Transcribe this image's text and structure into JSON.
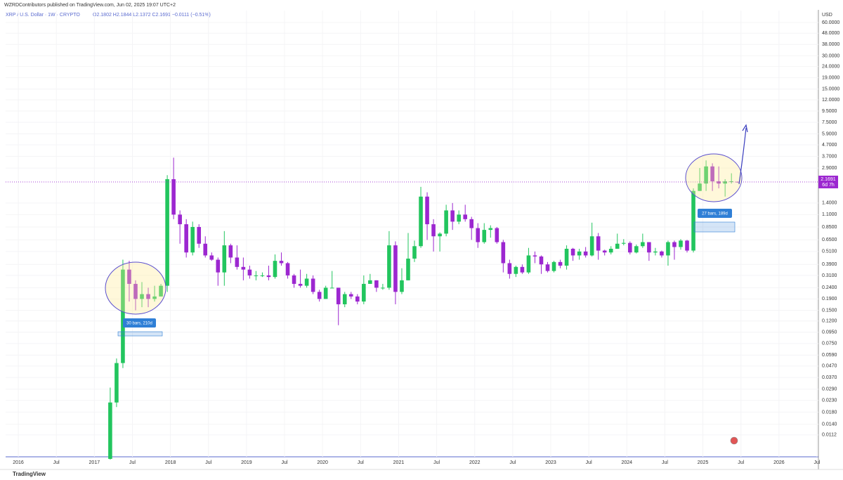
{
  "header": {
    "byline": "WZRDContributors published on TradingView.com, Jun 02, 2025 19:07 UTC+2",
    "brand": "TradingView"
  },
  "chart_data": {
    "type": "candlestick",
    "title": "XRP / U.S. Dollar · 1W · CRYPTO",
    "ohlc_label": "O2.1802 H2.1844 L2.1372 C2.1691 −0.0111 (−0.51%)",
    "currency": "USD",
    "last_price_label": "2.1691",
    "countdown": "6d 7h",
    "log_scale": true,
    "grid": true,
    "up_color": "#22c55e",
    "down_color": "#9c27d0",
    "annotations": [
      "30 bars, 210d",
      "27 bars, 189d"
    ],
    "x": [
      "2017-03",
      "2017-04",
      "2017-05",
      "2017-06",
      "2017-07",
      "2017-08",
      "2017-09",
      "2017-10",
      "2017-11",
      "2017-12",
      "2018-01",
      "2018-02",
      "2018-03",
      "2018-04",
      "2018-05",
      "2018-06",
      "2018-07",
      "2018-08",
      "2018-09",
      "2018-10",
      "2018-11",
      "2018-12",
      "2019-01",
      "2019-02",
      "2019-03",
      "2019-04",
      "2019-05",
      "2019-06",
      "2019-07",
      "2019-08",
      "2019-09",
      "2019-10",
      "2019-11",
      "2019-12",
      "2020-01",
      "2020-02",
      "2020-03",
      "2020-04",
      "2020-05",
      "2020-06",
      "2020-07",
      "2020-08",
      "2020-09",
      "2020-10",
      "2020-11",
      "2020-12",
      "2021-01",
      "2021-02",
      "2021-03",
      "2021-04",
      "2021-05",
      "2021-06",
      "2021-07",
      "2021-08",
      "2021-09",
      "2021-10",
      "2021-11",
      "2021-12",
      "2022-01",
      "2022-02",
      "2022-03",
      "2022-04",
      "2022-05",
      "2022-06",
      "2022-07",
      "2022-08",
      "2022-09",
      "2022-10",
      "2022-11",
      "2022-12",
      "2023-01",
      "2023-02",
      "2023-03",
      "2023-04",
      "2023-05",
      "2023-06",
      "2023-07",
      "2023-08",
      "2023-09",
      "2023-10",
      "2023-11",
      "2023-12",
      "2024-01",
      "2024-02",
      "2024-03",
      "2024-04",
      "2024-05",
      "2024-06",
      "2024-07",
      "2024-08",
      "2024-09",
      "2024-10",
      "2024-11",
      "2024-12",
      "2025-01",
      "2025-02",
      "2025-03",
      "2025-04",
      "2025-05",
      "2025-06"
    ],
    "open": [
      0.0068,
      0.022,
      0.05,
      0.35,
      0.26,
      0.19,
      0.21,
      0.19,
      0.2,
      0.25,
      2.3,
      1.1,
      0.9,
      0.5,
      0.85,
      0.6,
      0.47,
      0.43,
      0.33,
      0.58,
      0.45,
      0.37,
      0.35,
      0.31,
      0.31,
      0.31,
      0.3,
      0.42,
      0.4,
      0.31,
      0.26,
      0.25,
      0.29,
      0.22,
      0.19,
      0.24,
      0.24,
      0.17,
      0.21,
      0.2,
      0.18,
      0.26,
      0.28,
      0.24,
      0.24,
      0.58,
      0.22,
      0.28,
      0.44,
      0.57,
      1.6,
      0.9,
      0.7,
      0.74,
      1.2,
      0.95,
      1.1,
      1.0,
      0.83,
      0.62,
      0.8,
      0.83,
      0.62,
      0.4,
      0.32,
      0.37,
      0.33,
      0.47,
      0.46,
      0.39,
      0.34,
      0.41,
      0.38,
      0.54,
      0.47,
      0.51,
      0.47,
      0.7,
      0.52,
      0.5,
      0.54,
      0.6,
      0.61,
      0.5,
      0.57,
      0.62,
      0.5,
      0.51,
      0.47,
      0.62,
      0.56,
      0.64,
      0.52,
      1.8,
      2.1,
      3.0,
      2.2,
      2.1,
      2.2,
      2.1802
    ],
    "high": [
      0.03,
      0.055,
      0.43,
      0.42,
      0.28,
      0.27,
      0.24,
      0.25,
      0.26,
      2.5,
      3.6,
      1.2,
      1.0,
      0.95,
      0.9,
      0.7,
      0.5,
      0.45,
      0.78,
      0.6,
      0.58,
      0.45,
      0.38,
      0.34,
      0.33,
      0.38,
      0.48,
      0.5,
      0.41,
      0.32,
      0.35,
      0.32,
      0.31,
      0.23,
      0.25,
      0.34,
      0.24,
      0.22,
      0.22,
      0.21,
      0.31,
      0.32,
      0.28,
      0.26,
      0.78,
      0.63,
      0.36,
      0.75,
      0.64,
      1.96,
      1.75,
      1.0,
      0.76,
      1.35,
      1.4,
      1.2,
      1.35,
      1.05,
      0.92,
      0.92,
      0.88,
      0.85,
      0.65,
      0.43,
      0.38,
      0.39,
      0.55,
      0.51,
      0.47,
      0.41,
      0.42,
      0.43,
      0.58,
      0.55,
      0.54,
      0.56,
      0.93,
      0.75,
      0.53,
      0.57,
      0.74,
      0.66,
      0.63,
      0.59,
      0.74,
      0.62,
      0.55,
      0.52,
      0.64,
      0.64,
      0.66,
      0.65,
      1.9,
      2.9,
      3.4,
      3.2,
      3.0,
      2.3,
      2.6,
      2.1844
    ],
    "low": [
      0.0067,
      0.02,
      0.045,
      0.18,
      0.15,
      0.16,
      0.16,
      0.18,
      0.2,
      0.22,
      1.0,
      0.6,
      0.45,
      0.47,
      0.55,
      0.45,
      0.42,
      0.25,
      0.25,
      0.4,
      0.35,
      0.28,
      0.29,
      0.28,
      0.3,
      0.28,
      0.29,
      0.38,
      0.29,
      0.24,
      0.24,
      0.24,
      0.21,
      0.18,
      0.19,
      0.24,
      0.11,
      0.16,
      0.19,
      0.17,
      0.17,
      0.26,
      0.22,
      0.23,
      0.23,
      0.17,
      0.21,
      0.28,
      0.41,
      0.55,
      0.65,
      0.51,
      0.51,
      0.7,
      0.8,
      0.9,
      0.95,
      0.65,
      0.55,
      0.6,
      0.68,
      0.6,
      0.33,
      0.29,
      0.3,
      0.32,
      0.32,
      0.4,
      0.32,
      0.33,
      0.33,
      0.36,
      0.35,
      0.42,
      0.43,
      0.45,
      0.46,
      0.43,
      0.47,
      0.48,
      0.54,
      0.58,
      0.48,
      0.49,
      0.55,
      0.42,
      0.47,
      0.45,
      0.38,
      0.43,
      0.53,
      0.5,
      0.5,
      1.8,
      1.8,
      1.8,
      1.9,
      1.6,
      2.1,
      2.1372
    ],
    "close": [
      0.022,
      0.05,
      0.35,
      0.26,
      0.19,
      0.21,
      0.19,
      0.2,
      0.25,
      2.3,
      1.1,
      0.9,
      0.5,
      0.85,
      0.6,
      0.47,
      0.43,
      0.33,
      0.58,
      0.45,
      0.37,
      0.35,
      0.31,
      0.31,
      0.31,
      0.3,
      0.42,
      0.4,
      0.31,
      0.26,
      0.25,
      0.29,
      0.22,
      0.19,
      0.24,
      0.24,
      0.17,
      0.21,
      0.2,
      0.18,
      0.26,
      0.28,
      0.24,
      0.24,
      0.58,
      0.22,
      0.28,
      0.44,
      0.57,
      1.6,
      0.9,
      0.7,
      0.74,
      1.2,
      0.95,
      1.1,
      1.0,
      0.83,
      0.62,
      0.8,
      0.83,
      0.62,
      0.4,
      0.32,
      0.37,
      0.33,
      0.47,
      0.46,
      0.39,
      0.34,
      0.41,
      0.38,
      0.54,
      0.47,
      0.51,
      0.47,
      0.7,
      0.52,
      0.5,
      0.54,
      0.6,
      0.61,
      0.5,
      0.57,
      0.62,
      0.5,
      0.51,
      0.47,
      0.62,
      0.56,
      0.64,
      0.52,
      1.8,
      2.1,
      3.0,
      2.2,
      2.1,
      2.2,
      2.2,
      2.1691
    ],
    "ylim": [
      0.0071,
      77
    ],
    "yticks": [
      {
        "value": 60,
        "label": "60.0000"
      },
      {
        "value": 48,
        "label": "48.0000"
      },
      {
        "value": 38,
        "label": "38.0000"
      },
      {
        "value": 30,
        "label": "30.0000"
      },
      {
        "value": 24,
        "label": "24.0000"
      },
      {
        "value": 19,
        "label": "19.0000"
      },
      {
        "value": 15,
        "label": "15.0000"
      },
      {
        "value": 12,
        "label": "12.0000"
      },
      {
        "value": 9.5,
        "label": "9.5000"
      },
      {
        "value": 7.5,
        "label": "7.5000"
      },
      {
        "value": 5.9,
        "label": "5.9000"
      },
      {
        "value": 4.7,
        "label": "4.7000"
      },
      {
        "value": 3.7,
        "label": "3.7000"
      },
      {
        "value": 2.9,
        "label": "2.9000"
      },
      {
        "value": 1.4,
        "label": "1.4000"
      },
      {
        "value": 1.1,
        "label": "1.1000"
      },
      {
        "value": 0.85,
        "label": "0.8500"
      },
      {
        "value": 0.65,
        "label": "0.6500"
      },
      {
        "value": 0.51,
        "label": "0.5100"
      },
      {
        "value": 0.39,
        "label": "0.3900"
      },
      {
        "value": 0.31,
        "label": "0.3100"
      },
      {
        "value": 0.24,
        "label": "0.2400"
      },
      {
        "value": 0.19,
        "label": "0.1900"
      },
      {
        "value": 0.15,
        "label": "0.1500"
      },
      {
        "value": 0.12,
        "label": "0.1200"
      },
      {
        "value": 0.095,
        "label": "0.0950"
      },
      {
        "value": 0.075,
        "label": "0.0750"
      },
      {
        "value": 0.059,
        "label": "0.0590"
      },
      {
        "value": 0.047,
        "label": "0.0470"
      },
      {
        "value": 0.037,
        "label": "0.0370"
      },
      {
        "value": 0.029,
        "label": "0.0290"
      },
      {
        "value": 0.023,
        "label": "0.0230"
      },
      {
        "value": 0.018,
        "label": "0.0180"
      },
      {
        "value": 0.014,
        "label": "0.0140"
      },
      {
        "value": 0.0112,
        "label": "0.0112"
      }
    ],
    "xlim": [
      "2015-11",
      "2026-07"
    ],
    "xticks": [
      {
        "value": "2016-01",
        "label": "2016"
      },
      {
        "value": "2016-07",
        "label": "Jul"
      },
      {
        "value": "2017-01",
        "label": "2017"
      },
      {
        "value": "2017-07",
        "label": "Jul"
      },
      {
        "value": "2018-01",
        "label": "2018"
      },
      {
        "value": "2018-07",
        "label": "Jul"
      },
      {
        "value": "2019-01",
        "label": "2019"
      },
      {
        "value": "2019-07",
        "label": "Jul"
      },
      {
        "value": "2020-01",
        "label": "2020"
      },
      {
        "value": "2020-07",
        "label": "Jul"
      },
      {
        "value": "2021-01",
        "label": "2021"
      },
      {
        "value": "2021-07",
        "label": "Jul"
      },
      {
        "value": "2022-01",
        "label": "2022"
      },
      {
        "value": "2022-07",
        "label": "Jul"
      },
      {
        "value": "2023-01",
        "label": "2023"
      },
      {
        "value": "2023-07",
        "label": "Jul"
      },
      {
        "value": "2024-01",
        "label": "2024"
      },
      {
        "value": "2024-07",
        "label": "Jul"
      },
      {
        "value": "2025-01",
        "label": "2025"
      },
      {
        "value": "2025-07",
        "label": "Jul"
      },
      {
        "value": "2026-01",
        "label": "2026"
      },
      {
        "value": "2026-07",
        "label": "Jul"
      }
    ]
  }
}
